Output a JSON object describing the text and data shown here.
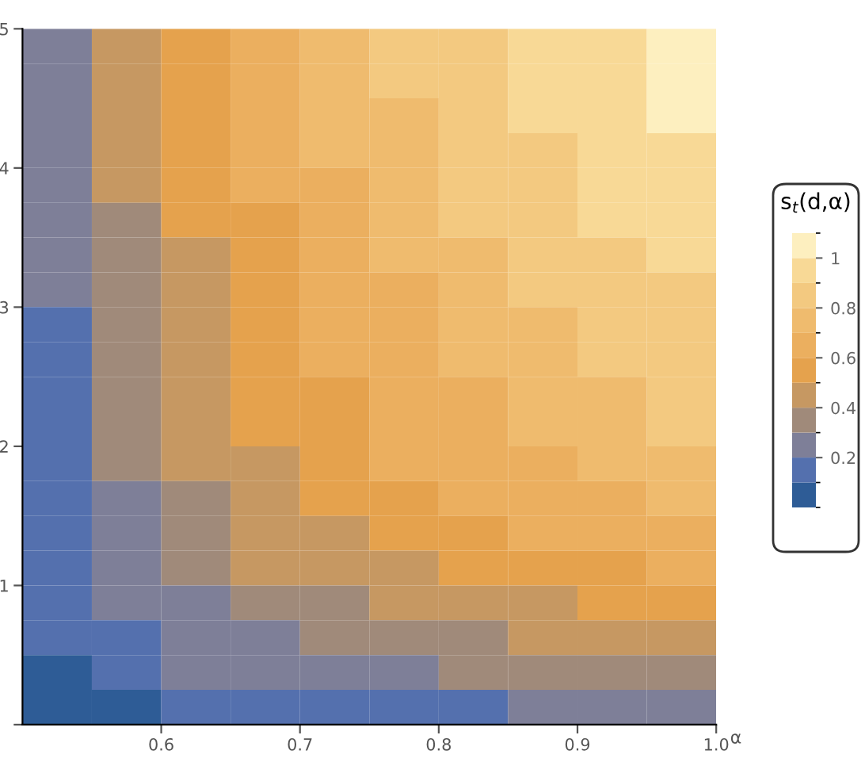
{
  "chart_data": {
    "type": "heatmap",
    "xlabel": "α",
    "clabel": "s$_{t}$(d,α)",
    "xlim": [
      0.5,
      1.0
    ],
    "ylim": [
      0,
      5
    ],
    "xticks": [
      0.6,
      0.7,
      0.8,
      0.9,
      {
        "value": 1.0,
        "label": "1.0"
      }
    ],
    "yticks": [
      {
        "value": 0,
        "label": null
      },
      1,
      2,
      3,
      4,
      5
    ],
    "clim": [
      0,
      1.1
    ],
    "cticks": [
      0.2,
      0.4,
      0.6,
      0.8,
      1
    ],
    "colors": [
      "#2e5c96",
      "#5470ae",
      "#7e7f98",
      "#a08a7a",
      "#c69862",
      "#e5a24d",
      "#ebaf5f",
      "#efbb6e",
      "#f3c980",
      "#f8d996",
      "#fdefbf"
    ],
    "cells": [
      [
        0.23,
        0.43,
        0.55,
        0.65,
        0.74,
        0.81,
        0.88,
        0.93,
        0.99,
        1.04
      ],
      [
        0.22,
        0.42,
        0.54,
        0.64,
        0.73,
        0.8,
        0.86,
        0.91,
        0.97,
        1.02
      ],
      [
        0.22,
        0.41,
        0.54,
        0.63,
        0.72,
        0.79,
        0.85,
        0.9,
        0.96,
        1.01
      ],
      [
        0.22,
        0.4,
        0.53,
        0.62,
        0.71,
        0.77,
        0.84,
        0.88,
        0.94,
        0.99
      ],
      [
        0.21,
        0.4,
        0.52,
        0.61,
        0.69,
        0.75,
        0.82,
        0.86,
        0.92,
        0.97
      ],
      [
        0.21,
        0.39,
        0.5,
        0.59,
        0.68,
        0.74,
        0.8,
        0.85,
        0.9,
        0.95
      ],
      [
        0.2,
        0.38,
        0.49,
        0.58,
        0.66,
        0.72,
        0.78,
        0.83,
        0.88,
        0.92
      ],
      [
        0.2,
        0.37,
        0.48,
        0.56,
        0.64,
        0.7,
        0.76,
        0.8,
        0.85,
        0.89
      ],
      [
        0.19,
        0.36,
        0.46,
        0.55,
        0.62,
        0.68,
        0.74,
        0.78,
        0.83,
        0.87
      ],
      [
        0.19,
        0.35,
        0.45,
        0.53,
        0.61,
        0.66,
        0.72,
        0.76,
        0.81,
        0.85
      ],
      [
        0.18,
        0.34,
        0.44,
        0.52,
        0.59,
        0.65,
        0.7,
        0.74,
        0.79,
        0.83
      ],
      [
        0.17,
        0.33,
        0.43,
        0.5,
        0.57,
        0.62,
        0.68,
        0.71,
        0.76,
        0.8
      ],
      [
        0.17,
        0.32,
        0.41,
        0.49,
        0.56,
        0.61,
        0.66,
        0.7,
        0.74,
        0.78
      ],
      [
        0.16,
        0.3,
        0.39,
        0.46,
        0.52,
        0.57,
        0.61,
        0.65,
        0.69,
        0.72
      ],
      [
        0.15,
        0.28,
        0.36,
        0.43,
        0.49,
        0.53,
        0.58,
        0.61,
        0.65,
        0.68
      ],
      [
        0.14,
        0.26,
        0.34,
        0.4,
        0.45,
        0.49,
        0.53,
        0.56,
        0.6,
        0.63
      ],
      [
        0.12,
        0.22,
        0.29,
        0.34,
        0.39,
        0.43,
        0.46,
        0.49,
        0.52,
        0.55
      ],
      [
        0.1,
        0.18,
        0.24,
        0.28,
        0.32,
        0.35,
        0.38,
        0.4,
        0.43,
        0.45
      ],
      [
        0.08,
        0.15,
        0.2,
        0.23,
        0.26,
        0.29,
        0.31,
        0.33,
        0.35,
        0.37
      ],
      [
        0.05,
        0.09,
        0.12,
        0.14,
        0.16,
        0.17,
        0.19,
        0.2,
        0.21,
        0.22
      ]
    ],
    "grid": false
  }
}
